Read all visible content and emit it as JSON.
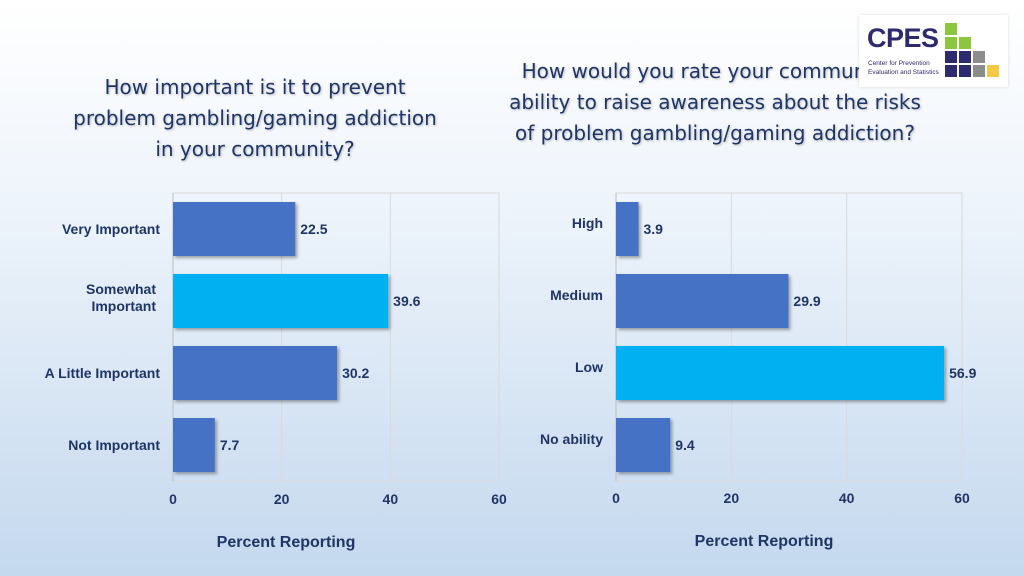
{
  "logo": {
    "text": "CPES",
    "subtitle": "Center for Prevention Evaluation and Statistics",
    "colors": {
      "navy": "#2e2a6e",
      "green": "#8cc63f",
      "gray": "#8c8c8c",
      "yellow": "#f7c843"
    }
  },
  "chart_data": [
    {
      "type": "bar",
      "orientation": "horizontal",
      "title": "How important is it to prevent problem gambling/gaming addiction in your community?",
      "categories": [
        "Very Important",
        "Somewhat Important",
        "A Little Important",
        "Not Important"
      ],
      "values": [
        22.5,
        39.6,
        30.2,
        7.7
      ],
      "value_labels": [
        "22.5",
        "39.6",
        "30.2",
        "7.7"
      ],
      "highlight_index": 1,
      "xlabel": "Percent Reporting",
      "xlim": [
        0,
        60
      ],
      "xticks": [
        0,
        20,
        40,
        60
      ],
      "grid": true,
      "colors": {
        "bar": "#4472c4",
        "highlight": "#00b0f0"
      }
    },
    {
      "type": "bar",
      "orientation": "horizontal",
      "title": "How would you rate your community’s ability to raise awareness about the risks of problem gambling/gaming addiction?",
      "categories": [
        "High",
        "Medium",
        "Low",
        "No ability"
      ],
      "values": [
        3.9,
        29.9,
        56.9,
        9.4
      ],
      "value_labels": [
        "3.9",
        "29.9",
        "56.9",
        "9.4"
      ],
      "highlight_index": 2,
      "xlabel": "Percent Reporting",
      "xlim": [
        0,
        60
      ],
      "xticks": [
        0,
        20,
        40,
        60
      ],
      "grid": true,
      "colors": {
        "bar": "#4472c4",
        "highlight": "#00b0f0"
      }
    }
  ]
}
